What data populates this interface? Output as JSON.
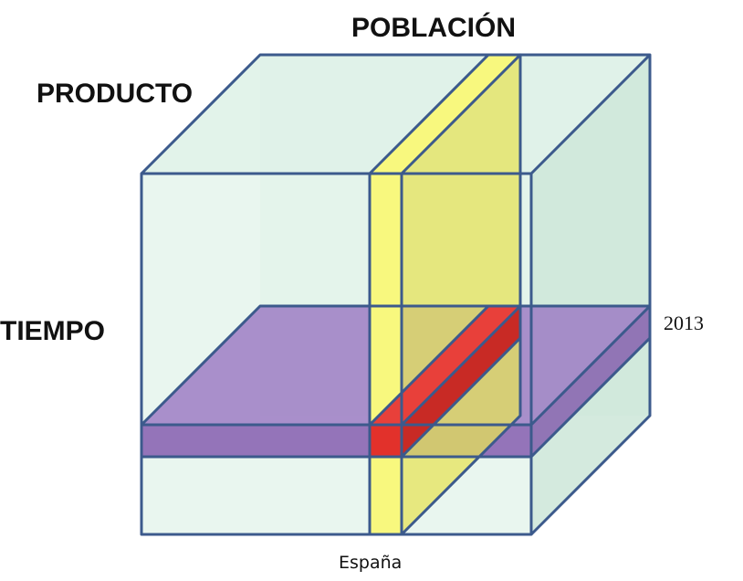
{
  "dimensions": {
    "poblacion": "POBLACIÓN",
    "producto": "PRODUCTO",
    "tiempo": "TIEMPO"
  },
  "members": {
    "year": "2013",
    "country": "España"
  },
  "colors": {
    "edge": "#3c5a8c",
    "cube_face": "#cfeadb",
    "time_slice": "#9b7ac0",
    "country_slice": "#f7f77a",
    "highlight_cell": "#e2312b"
  }
}
